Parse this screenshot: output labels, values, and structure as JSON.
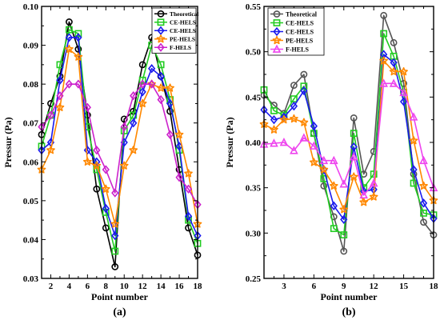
{
  "chart_data": [
    {
      "type": "line",
      "panel_label": "(a)",
      "xlabel": "Point number",
      "ylabel": "Pressur (Pa)",
      "xlim": [
        1,
        18
      ],
      "ylim": [
        0.03,
        0.1
      ],
      "x_ticks": [
        2,
        4,
        6,
        8,
        10,
        12,
        14,
        16,
        18
      ],
      "y_ticks": [
        0.03,
        0.04,
        0.05,
        0.06,
        0.07,
        0.08,
        0.09,
        0.1
      ],
      "y_tick_labels": [
        "0.03",
        "0.04",
        "0.05",
        "0.06",
        "0.07",
        "0.08",
        "0.09",
        "0.10"
      ],
      "legend_position": "top-right",
      "x": [
        1,
        2,
        3,
        4,
        5,
        6,
        7,
        8,
        9,
        10,
        11,
        12,
        13,
        14,
        15,
        16,
        17,
        18
      ],
      "series": [
        {
          "name": "Theoretical",
          "color": "#000000",
          "marker": "circle",
          "values": [
            0.067,
            0.075,
            0.082,
            0.096,
            0.089,
            0.072,
            0.053,
            0.043,
            0.033,
            0.071,
            0.073,
            0.085,
            0.092,
            0.082,
            0.073,
            0.058,
            0.043,
            0.036
          ]
        },
        {
          "name": "CE-HELS",
          "color": "#22cc22",
          "marker": "square",
          "values": [
            0.064,
            0.072,
            0.085,
            0.094,
            0.093,
            0.069,
            0.058,
            0.047,
            0.037,
            0.068,
            0.072,
            0.081,
            0.09,
            0.085,
            0.076,
            0.063,
            0.045,
            0.039
          ]
        },
        {
          "name": "CE-HELS",
          "color": "#1a1aee",
          "marker": "diamond",
          "values": [
            0.063,
            0.065,
            0.081,
            0.092,
            0.092,
            0.063,
            0.06,
            0.048,
            0.041,
            0.065,
            0.07,
            0.078,
            0.084,
            0.082,
            0.075,
            0.064,
            0.046,
            0.041
          ]
        },
        {
          "name": "PE-HELS",
          "color": "#ff8800",
          "marker": "star",
          "values": [
            0.058,
            0.063,
            0.074,
            0.089,
            0.087,
            0.06,
            0.059,
            0.053,
            0.044,
            0.059,
            0.063,
            0.075,
            0.08,
            0.079,
            0.079,
            0.067,
            0.057,
            0.044
          ]
        },
        {
          "name": "F-HELS",
          "color": "#cc22cc",
          "marker": "diamond",
          "values": [
            0.069,
            0.072,
            0.077,
            0.08,
            0.08,
            0.074,
            0.063,
            0.058,
            0.052,
            0.069,
            0.077,
            0.08,
            0.08,
            0.076,
            0.067,
            0.056,
            0.053,
            0.049
          ]
        }
      ]
    },
    {
      "type": "line",
      "panel_label": "(b)",
      "xlabel": "Point number",
      "ylabel": "Pressur (Pa)",
      "xlim": [
        1,
        18
      ],
      "ylim": [
        0.25,
        0.55
      ],
      "x_ticks": [
        3,
        6,
        9,
        12,
        15,
        18
      ],
      "y_ticks": [
        0.25,
        0.3,
        0.35,
        0.4,
        0.45,
        0.5,
        0.55
      ],
      "y_tick_labels": [
        "0.25",
        "0.30",
        "0.35",
        "0.40",
        "0.45",
        "0.50",
        "0.55"
      ],
      "legend_position": "top-left",
      "x": [
        1,
        2,
        3,
        4,
        5,
        6,
        7,
        8,
        9,
        10,
        11,
        12,
        13,
        14,
        15,
        16,
        17,
        18
      ],
      "series": [
        {
          "name": "Theoretical",
          "color": "#555555",
          "marker": "circle",
          "values": [
            0.452,
            0.441,
            0.432,
            0.463,
            0.475,
            0.41,
            0.352,
            0.318,
            0.28,
            0.427,
            0.365,
            0.39,
            0.54,
            0.51,
            0.465,
            0.365,
            0.312,
            0.298
          ]
        },
        {
          "name": "CE-HELS",
          "color": "#22cc22",
          "marker": "square",
          "values": [
            0.458,
            0.435,
            0.43,
            0.448,
            0.462,
            0.41,
            0.36,
            0.305,
            0.298,
            0.41,
            0.35,
            0.365,
            0.52,
            0.495,
            0.455,
            0.355,
            0.322,
            0.32
          ]
        },
        {
          "name": "CE-HELS",
          "color": "#1a1aee",
          "marker": "diamond",
          "values": [
            0.436,
            0.425,
            0.428,
            0.44,
            0.457,
            0.418,
            0.37,
            0.33,
            0.315,
            0.395,
            0.346,
            0.348,
            0.497,
            0.488,
            0.445,
            0.37,
            0.333,
            0.316
          ]
        },
        {
          "name": "PE-HELS",
          "color": "#ff8800",
          "marker": "star",
          "values": [
            0.42,
            0.414,
            0.425,
            0.426,
            0.422,
            0.378,
            0.37,
            0.352,
            0.326,
            0.362,
            0.334,
            0.34,
            0.49,
            0.478,
            0.478,
            0.402,
            0.352,
            0.336
          ]
        },
        {
          "name": "F-HELS",
          "color": "#ee44ee",
          "marker": "triangle",
          "values": [
            0.398,
            0.399,
            0.4,
            0.391,
            0.405,
            0.396,
            0.38,
            0.38,
            0.354,
            0.384,
            0.342,
            0.355,
            0.465,
            0.465,
            0.455,
            0.428,
            0.38,
            0.35
          ]
        }
      ]
    }
  ]
}
